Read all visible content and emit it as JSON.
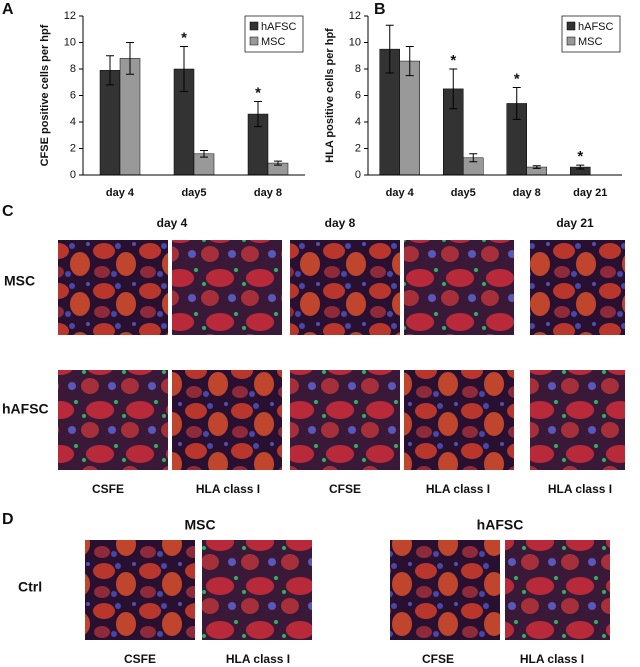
{
  "chart_data": [
    {
      "type": "bar",
      "panel": "A",
      "y_label": "CFSE positive cells per hpf",
      "categories": [
        "day 4",
        "day5",
        "day 8"
      ],
      "series": [
        {
          "name": "hAFSC",
          "color": "#333333",
          "values": [
            7.9,
            8.0,
            4.6
          ],
          "errors": [
            1.1,
            1.7,
            0.95
          ],
          "annotations": [
            null,
            "*",
            "*"
          ]
        },
        {
          "name": "MSC",
          "color": "#999999",
          "values": [
            8.8,
            1.6,
            0.9
          ],
          "errors": [
            1.2,
            0.25,
            0.15
          ]
        }
      ],
      "ylim": [
        0,
        12
      ],
      "yticks": [
        0,
        2,
        4,
        6,
        8,
        10,
        12
      ],
      "legend": "upper right"
    },
    {
      "type": "bar",
      "panel": "B",
      "y_label": "HLA positive cells per hpf",
      "categories": [
        "day 4",
        "day5",
        "day 8",
        "day 21"
      ],
      "series": [
        {
          "name": "hAFSC",
          "color": "#333333",
          "values": [
            9.5,
            6.5,
            5.4,
            0.6
          ],
          "errors": [
            1.8,
            1.5,
            1.2,
            0.15
          ],
          "annotations": [
            null,
            "*",
            "*",
            "*"
          ]
        },
        {
          "name": "MSC",
          "color": "#999999",
          "values": [
            8.6,
            1.3,
            0.6,
            null
          ],
          "errors": [
            1.1,
            0.3,
            0.1,
            null
          ]
        }
      ],
      "ylim": [
        0,
        12
      ],
      "yticks": [
        0,
        2,
        4,
        6,
        8,
        10,
        12
      ],
      "legend": "upper right"
    }
  ],
  "panel_c": {
    "letter": "C",
    "days": [
      "day 4",
      "day 8",
      "day 21"
    ],
    "rows": [
      "MSC",
      "hAFSC"
    ],
    "columns": [
      "CSFE",
      "HLA class I",
      "CFSE",
      "HLA class I",
      "HLA class I"
    ]
  },
  "panel_d": {
    "letter": "D",
    "groups": [
      "MSC",
      "hAFSC"
    ],
    "row": "Ctrl",
    "columns": [
      "CSFE",
      "HLA class I",
      "CFSE",
      "HLA class I"
    ]
  }
}
